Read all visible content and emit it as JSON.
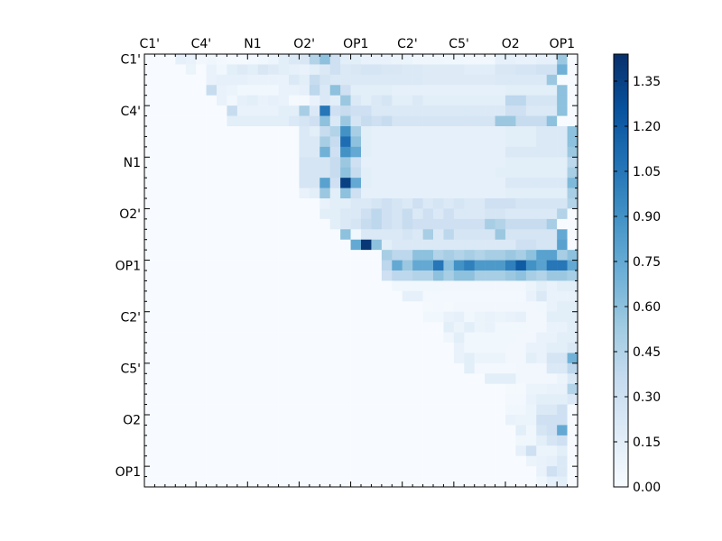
{
  "chart_data": {
    "type": "heatmap",
    "title": "",
    "xlabel": "",
    "ylabel": "",
    "n": 42,
    "tick_every": 5,
    "x_tick_labels": [
      "C1'",
      "C4'",
      "N1",
      "O2'",
      "OP1",
      "C2'",
      "C5'",
      "O2",
      "OP1"
    ],
    "y_tick_labels": [
      "C1'",
      "C4'",
      "N1",
      "O2'",
      "OP1",
      "C2'",
      "C5'",
      "O2",
      "OP1"
    ],
    "colorbar": {
      "min": 0.0,
      "max": 1.44,
      "ticks": [
        "0.00",
        "0.15",
        "0.30",
        "0.45",
        "0.60",
        "0.75",
        "0.90",
        "1.05",
        "1.20",
        "1.35"
      ],
      "colors": [
        "#f7fbff",
        "#deebf7",
        "#c6dbef",
        "#9ecae1",
        "#6baed6",
        "#4292c6",
        "#2171b5",
        "#08519c",
        "#08306b"
      ]
    },
    "rows": [
      [
        0,
        2,
        0.0,
        0.12,
        0.1,
        0.04,
        0.06,
        0.03,
        0.02,
        0.02,
        0.03,
        0.05,
        0.07,
        0.15,
        0.2,
        0.22,
        0.45,
        0.6,
        0.3,
        0.15,
        0.15,
        0.1,
        0.1,
        0.1,
        0.08,
        0.08,
        0.06,
        0.06,
        0.06,
        0.05,
        0.05,
        0.04,
        0.04,
        0.04,
        0.12,
        0.12,
        0.1,
        0.1,
        0.12,
        0.12,
        0.55
      ],
      [
        1,
        4,
        0.08,
        0.0,
        0.1,
        0.05,
        0.15,
        0.18,
        0.15,
        0.22,
        0.18,
        0.15,
        0.12,
        0.1,
        0.15,
        0.2,
        0.3,
        0.2,
        0.22,
        0.25,
        0.25,
        0.22,
        0.22,
        0.2,
        0.2,
        0.18,
        0.18,
        0.18,
        0.18,
        0.16,
        0.16,
        0.16,
        0.22,
        0.22,
        0.25,
        0.25,
        0.28,
        0.28,
        0.7
      ],
      [
        2,
        5,
        0.0,
        0.1,
        0.12,
        0.12,
        0.12,
        0.1,
        0.1,
        0.1,
        0.1,
        0.2,
        0.15,
        0.35,
        0.25,
        0.2,
        0.2,
        0.2,
        0.2,
        0.2,
        0.2,
        0.2,
        0.2,
        0.2,
        0.18,
        0.18,
        0.18,
        0.18,
        0.18,
        0.18,
        0.18,
        0.2,
        0.2,
        0.2,
        0.2,
        0.2,
        0.55
      ],
      [
        3,
        6,
        0.35,
        0.1,
        0.08,
        0.05,
        0.05,
        0.05,
        0.05,
        0.1,
        0.1,
        0.12,
        0.4,
        0.2,
        0.6,
        0.3,
        0.15,
        0.15,
        0.15,
        0.15,
        0.12,
        0.12,
        0.12,
        0.12,
        0.12,
        0.12,
        0.12,
        0.12,
        0.12,
        0.12,
        0.12,
        0.15,
        0.15,
        0.15,
        0.15,
        0.15,
        0.6
      ],
      [
        4,
        7,
        0.1,
        0.05,
        0.12,
        0.15,
        0.1,
        0.12,
        0.1,
        0.02,
        0.02,
        0.1,
        0.2,
        0.15,
        0.55,
        0.2,
        0.15,
        0.2,
        0.25,
        0.15,
        0.15,
        0.2,
        0.15,
        0.15,
        0.15,
        0.15,
        0.15,
        0.15,
        0.15,
        0.15,
        0.4,
        0.4,
        0.25,
        0.25,
        0.25,
        0.6
      ],
      [
        5,
        8,
        0.35,
        0.1,
        0.1,
        0.1,
        0.1,
        0.15,
        0.15,
        0.5,
        0.2,
        1.05,
        0.3,
        0.35,
        0.3,
        0.3,
        0.2,
        0.2,
        0.2,
        0.2,
        0.2,
        0.2,
        0.2,
        0.2,
        0.2,
        0.2,
        0.2,
        0.2,
        0.2,
        0.3,
        0.3,
        0.2,
        0.2,
        0.2,
        0.6
      ],
      [
        6,
        8,
        0.15,
        0.15,
        0.15,
        0.15,
        0.15,
        0.15,
        0.2,
        0.25,
        0.3,
        0.6,
        0.2,
        0.55,
        0.25,
        0.35,
        0.3,
        0.35,
        0.25,
        0.25,
        0.25,
        0.25,
        0.25,
        0.25,
        0.25,
        0.25,
        0.25,
        0.25,
        0.55,
        0.55,
        0.35,
        0.35,
        0.35,
        0.6
      ],
      [
        7,
        15,
        0.2,
        0.15,
        0.35,
        0.45,
        0.9,
        0.5,
        0.15,
        0.12,
        0.12,
        0.12,
        0.12,
        0.12,
        0.12,
        0.12,
        0.12,
        0.12,
        0.12,
        0.12,
        0.12,
        0.12,
        0.15,
        0.15,
        0.15,
        0.2,
        0.2,
        0.2,
        0.6
      ],
      [
        8,
        15,
        0.2,
        0.2,
        0.5,
        0.35,
        1.1,
        0.6,
        0.15,
        0.12,
        0.12,
        0.12,
        0.12,
        0.12,
        0.12,
        0.12,
        0.12,
        0.12,
        0.12,
        0.12,
        0.12,
        0.12,
        0.15,
        0.15,
        0.15,
        0.2,
        0.2,
        0.2,
        0.6
      ],
      [
        9,
        15,
        0.2,
        0.2,
        0.7,
        0.3,
        0.9,
        0.75,
        0.15,
        0.12,
        0.12,
        0.12,
        0.12,
        0.12,
        0.12,
        0.12,
        0.12,
        0.12,
        0.12,
        0.12,
        0.12,
        0.12,
        0.2,
        0.2,
        0.2,
        0.2,
        0.2,
        0.2,
        0.55
      ],
      [
        10,
        15,
        0.25,
        0.25,
        0.25,
        0.35,
        0.55,
        0.3,
        0.12,
        0.12,
        0.12,
        0.12,
        0.12,
        0.12,
        0.12,
        0.12,
        0.12,
        0.12,
        0.12,
        0.12,
        0.12,
        0.12,
        0.15,
        0.15,
        0.15,
        0.15,
        0.15,
        0.15,
        0.4
      ],
      [
        11,
        15,
        0.25,
        0.25,
        0.25,
        0.35,
        0.6,
        0.35,
        0.15,
        0.12,
        0.12,
        0.12,
        0.12,
        0.12,
        0.12,
        0.12,
        0.12,
        0.12,
        0.12,
        0.12,
        0.12,
        0.15,
        0.15,
        0.15,
        0.15,
        0.15,
        0.15,
        0.15,
        0.5
      ],
      [
        12,
        15,
        0.25,
        0.25,
        0.8,
        0.3,
        1.35,
        0.75,
        0.15,
        0.12,
        0.12,
        0.12,
        0.12,
        0.12,
        0.12,
        0.12,
        0.12,
        0.12,
        0.12,
        0.12,
        0.12,
        0.12,
        0.2,
        0.2,
        0.2,
        0.2,
        0.2,
        0.2,
        0.65
      ],
      [
        13,
        15,
        0.1,
        0.15,
        0.55,
        0.15,
        0.6,
        0.3,
        0.12,
        0.12,
        0.12,
        0.12,
        0.12,
        0.12,
        0.12,
        0.12,
        0.12,
        0.12,
        0.12,
        0.12,
        0.12,
        0.12,
        0.15,
        0.15,
        0.15,
        0.15,
        0.15,
        0.15,
        0.5
      ],
      [
        14,
        17,
        0.1,
        0.15,
        0.15,
        0.2,
        0.2,
        0.25,
        0.3,
        0.25,
        0.2,
        0.3,
        0.2,
        0.25,
        0.2,
        0.25,
        0.2,
        0.2,
        0.3,
        0.3,
        0.3,
        0.25,
        0.25,
        0.25,
        0.25,
        0.25,
        0.45
      ],
      [
        15,
        17,
        0.15,
        0.15,
        0.2,
        0.2,
        0.3,
        0.4,
        0.3,
        0.25,
        0.35,
        0.2,
        0.3,
        0.2,
        0.3,
        0.2,
        0.2,
        0.2,
        0.25,
        0.25,
        0.2,
        0.2,
        0.2,
        0.2,
        0.2,
        0.45
      ],
      [
        16,
        18,
        0.15,
        0.2,
        0.25,
        0.35,
        0.4,
        0.3,
        0.25,
        0.35,
        0.3,
        0.3,
        0.3,
        0.3,
        0.3,
        0.3,
        0.3,
        0.5,
        0.45,
        0.35,
        0.35,
        0.35,
        0.35,
        0.5
      ],
      [
        17,
        19,
        0.6,
        0.05,
        0.2,
        0.2,
        0.2,
        0.2,
        0.25,
        0.2,
        0.5,
        0.2,
        0.4,
        0.25,
        0.25,
        0.25,
        0.25,
        0.55,
        0.25,
        0.25,
        0.25,
        0.25,
        0.25,
        0.75
      ],
      [
        18,
        20,
        0.75,
        1.4,
        0.6,
        0.15,
        0.2,
        0.2,
        0.2,
        0.2,
        0.2,
        0.2,
        0.2,
        0.2,
        0.2,
        0.2,
        0.2,
        0.2,
        0.3,
        0.3,
        0.25,
        0.25,
        0.8
      ],
      [
        19,
        23,
        0.5,
        0.4,
        0.4,
        0.6,
        0.6,
        0.45,
        0.5,
        0.45,
        0.5,
        0.45,
        0.5,
        0.5,
        0.55,
        0.5,
        0.6,
        0.8,
        0.8,
        0.5,
        0.6,
        0.6,
        0.7,
        0.8,
        1.4
      ],
      [
        20,
        23,
        0.4,
        0.75,
        0.55,
        0.75,
        0.75,
        1.05,
        0.6,
        0.9,
        1.0,
        0.85,
        0.85,
        0.85,
        1.0,
        1.2,
        0.9,
        0.8,
        1.05,
        1.05,
        0.75,
        0.85,
        0.85,
        1.2,
        1.3
      ],
      [
        21,
        23,
        0.3,
        0.4,
        0.4,
        0.45,
        0.45,
        0.6,
        0.5,
        0.6,
        0.6,
        0.5,
        0.5,
        0.5,
        0.55,
        0.6,
        0.5,
        0.45,
        0.55,
        0.55,
        0.5,
        0.55,
        0.6,
        0.85,
        0.9
      ],
      [
        22,
        24,
        0.05,
        0.05,
        0.05,
        0.05,
        0.05,
        0.04,
        0.04,
        0.04,
        0.04,
        0.04,
        0.04,
        0.04,
        0.04,
        0.08,
        0.15,
        0.1,
        0.15,
        0.15,
        0.15,
        0.2
      ],
      [
        23,
        25,
        0.12,
        0.12,
        0.03,
        0.03,
        0.03,
        0.03,
        0.03,
        0.03,
        0.03,
        0.03,
        0.03,
        0.03,
        0.1,
        0.2,
        0.1,
        0.1,
        0.1,
        0.1,
        0.45
      ],
      [
        24,
        27,
        0.02,
        0.03,
        0.02,
        0.04,
        0.04,
        0.04,
        0.04,
        0.04,
        0.04,
        0.04,
        0.04,
        0.05,
        0.1,
        0.15,
        0.15,
        0.15,
        0.15
      ],
      [
        25,
        27,
        0.05,
        0.05,
        0.1,
        0.12,
        0.05,
        0.08,
        0.1,
        0.08,
        0.1,
        0.12,
        0.04,
        0.04,
        0.15,
        0.15,
        0.15,
        0.15,
        0.2
      ],
      [
        26,
        29,
        0.15,
        0.08,
        0.15,
        0.08,
        0.1,
        0.05,
        0.05,
        0.05,
        0.04,
        0.04,
        0.1,
        0.1,
        0.15,
        0.15,
        0.2
      ],
      [
        27,
        29,
        0.06,
        0.15,
        0.05,
        0.05,
        0.05,
        0.05,
        0.05,
        0.04,
        0.04,
        0.1,
        0.1,
        0.15,
        0.15,
        0.6
      ],
      [
        28,
        30,
        0.1,
        0.05,
        0.05,
        0.05,
        0.05,
        0.04,
        0.04,
        0.1,
        0.1,
        0.15,
        0.15,
        0.2
      ],
      [
        29,
        30,
        0.1,
        0.15,
        0.08,
        0.08,
        0.08,
        0.04,
        0.04,
        0.15,
        0.1,
        0.25,
        0.25,
        0.7
      ],
      [
        30,
        31,
        0.15,
        0.03,
        0.03,
        0.03,
        0.03,
        0.04,
        0.04,
        0.04,
        0.2,
        0.2,
        0.4
      ],
      [
        31,
        33,
        0.15,
        0.15,
        0.15,
        0.04,
        0.04,
        0.04,
        0.04,
        0.08,
        0.2,
        0.2
      ],
      [
        32,
        35,
        0.02,
        0.02,
        0.08,
        0.08,
        0.1,
        0.1,
        0.45
      ],
      [
        33,
        35,
        0.03,
        0.03,
        0.1,
        0.15,
        0.15,
        0.15,
        0.2
      ],
      [
        34,
        35,
        0.05,
        0.05,
        0.08,
        0.2,
        0.2,
        0.3
      ],
      [
        35,
        35,
        0.1,
        0.08,
        0.08,
        0.3,
        0.3,
        0.3
      ],
      [
        36,
        36,
        0.15,
        0.06,
        0.25,
        0.3,
        0.75
      ],
      [
        37,
        36,
        0.06,
        0.06,
        0.15,
        0.25,
        0.3
      ],
      [
        38,
        36,
        0.12,
        0.3,
        0.08,
        0.08,
        0.15
      ],
      [
        39,
        37,
        0.08,
        0.1,
        0.12,
        0.2
      ],
      [
        40,
        38,
        0.1,
        0.3,
        0.2
      ],
      [
        41,
        38,
        0.06,
        0.12,
        0.15
      ]
    ]
  }
}
